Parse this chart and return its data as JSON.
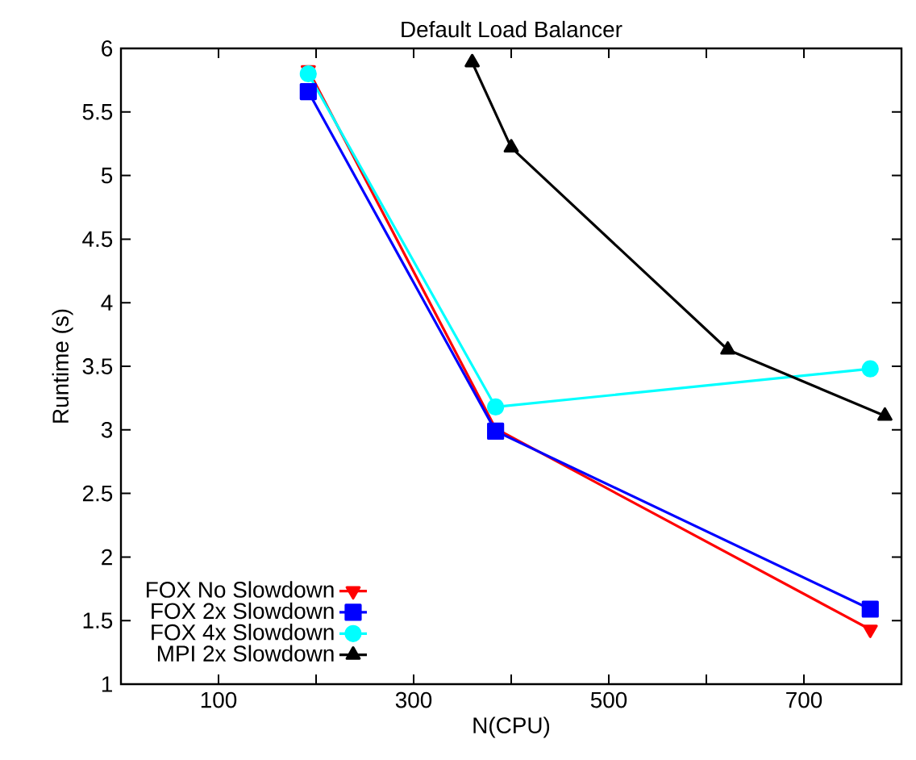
{
  "chart_data": {
    "type": "line",
    "title": "Default Load Balancer",
    "xlabel": "N(CPU)",
    "ylabel": "Runtime (s)",
    "xlim": [
      0,
      800
    ],
    "xticks": [
      100,
      {
        "value": 200,
        "label": null
      },
      300,
      {
        "value": 400,
        "label": null
      },
      500,
      {
        "value": 600,
        "label": null
      },
      700
    ],
    "ylim": [
      1,
      6
    ],
    "yticks": [
      1,
      1.5,
      2,
      2.5,
      3,
      3.5,
      4,
      4.5,
      5,
      5.5,
      6
    ],
    "grid": false,
    "legend": "bottom left",
    "line_style": "solid",
    "series": [
      {
        "name": "FOX No Slowdown",
        "color": "#ff0000",
        "marker": "triangle-down",
        "x": [
          192,
          384,
          768
        ],
        "values": [
          5.83,
          3.01,
          1.43
        ]
      },
      {
        "name": "FOX 2x Slowdown",
        "color": "#0000ff",
        "marker": "square",
        "x": [
          192,
          384,
          768
        ],
        "values": [
          5.66,
          2.99,
          1.59
        ]
      },
      {
        "name": "FOX 4x Slowdown",
        "color": "#00ffff",
        "marker": "circle",
        "x": [
          192,
          384,
          768
        ],
        "values": [
          5.8,
          3.18,
          3.48
        ]
      },
      {
        "name": "MPI 2x Slowdown",
        "color": "#000000",
        "marker": "triangle",
        "x": [
          360,
          400,
          622,
          783
        ],
        "values": [
          5.89,
          5.22,
          3.63,
          3.11
        ]
      }
    ]
  }
}
